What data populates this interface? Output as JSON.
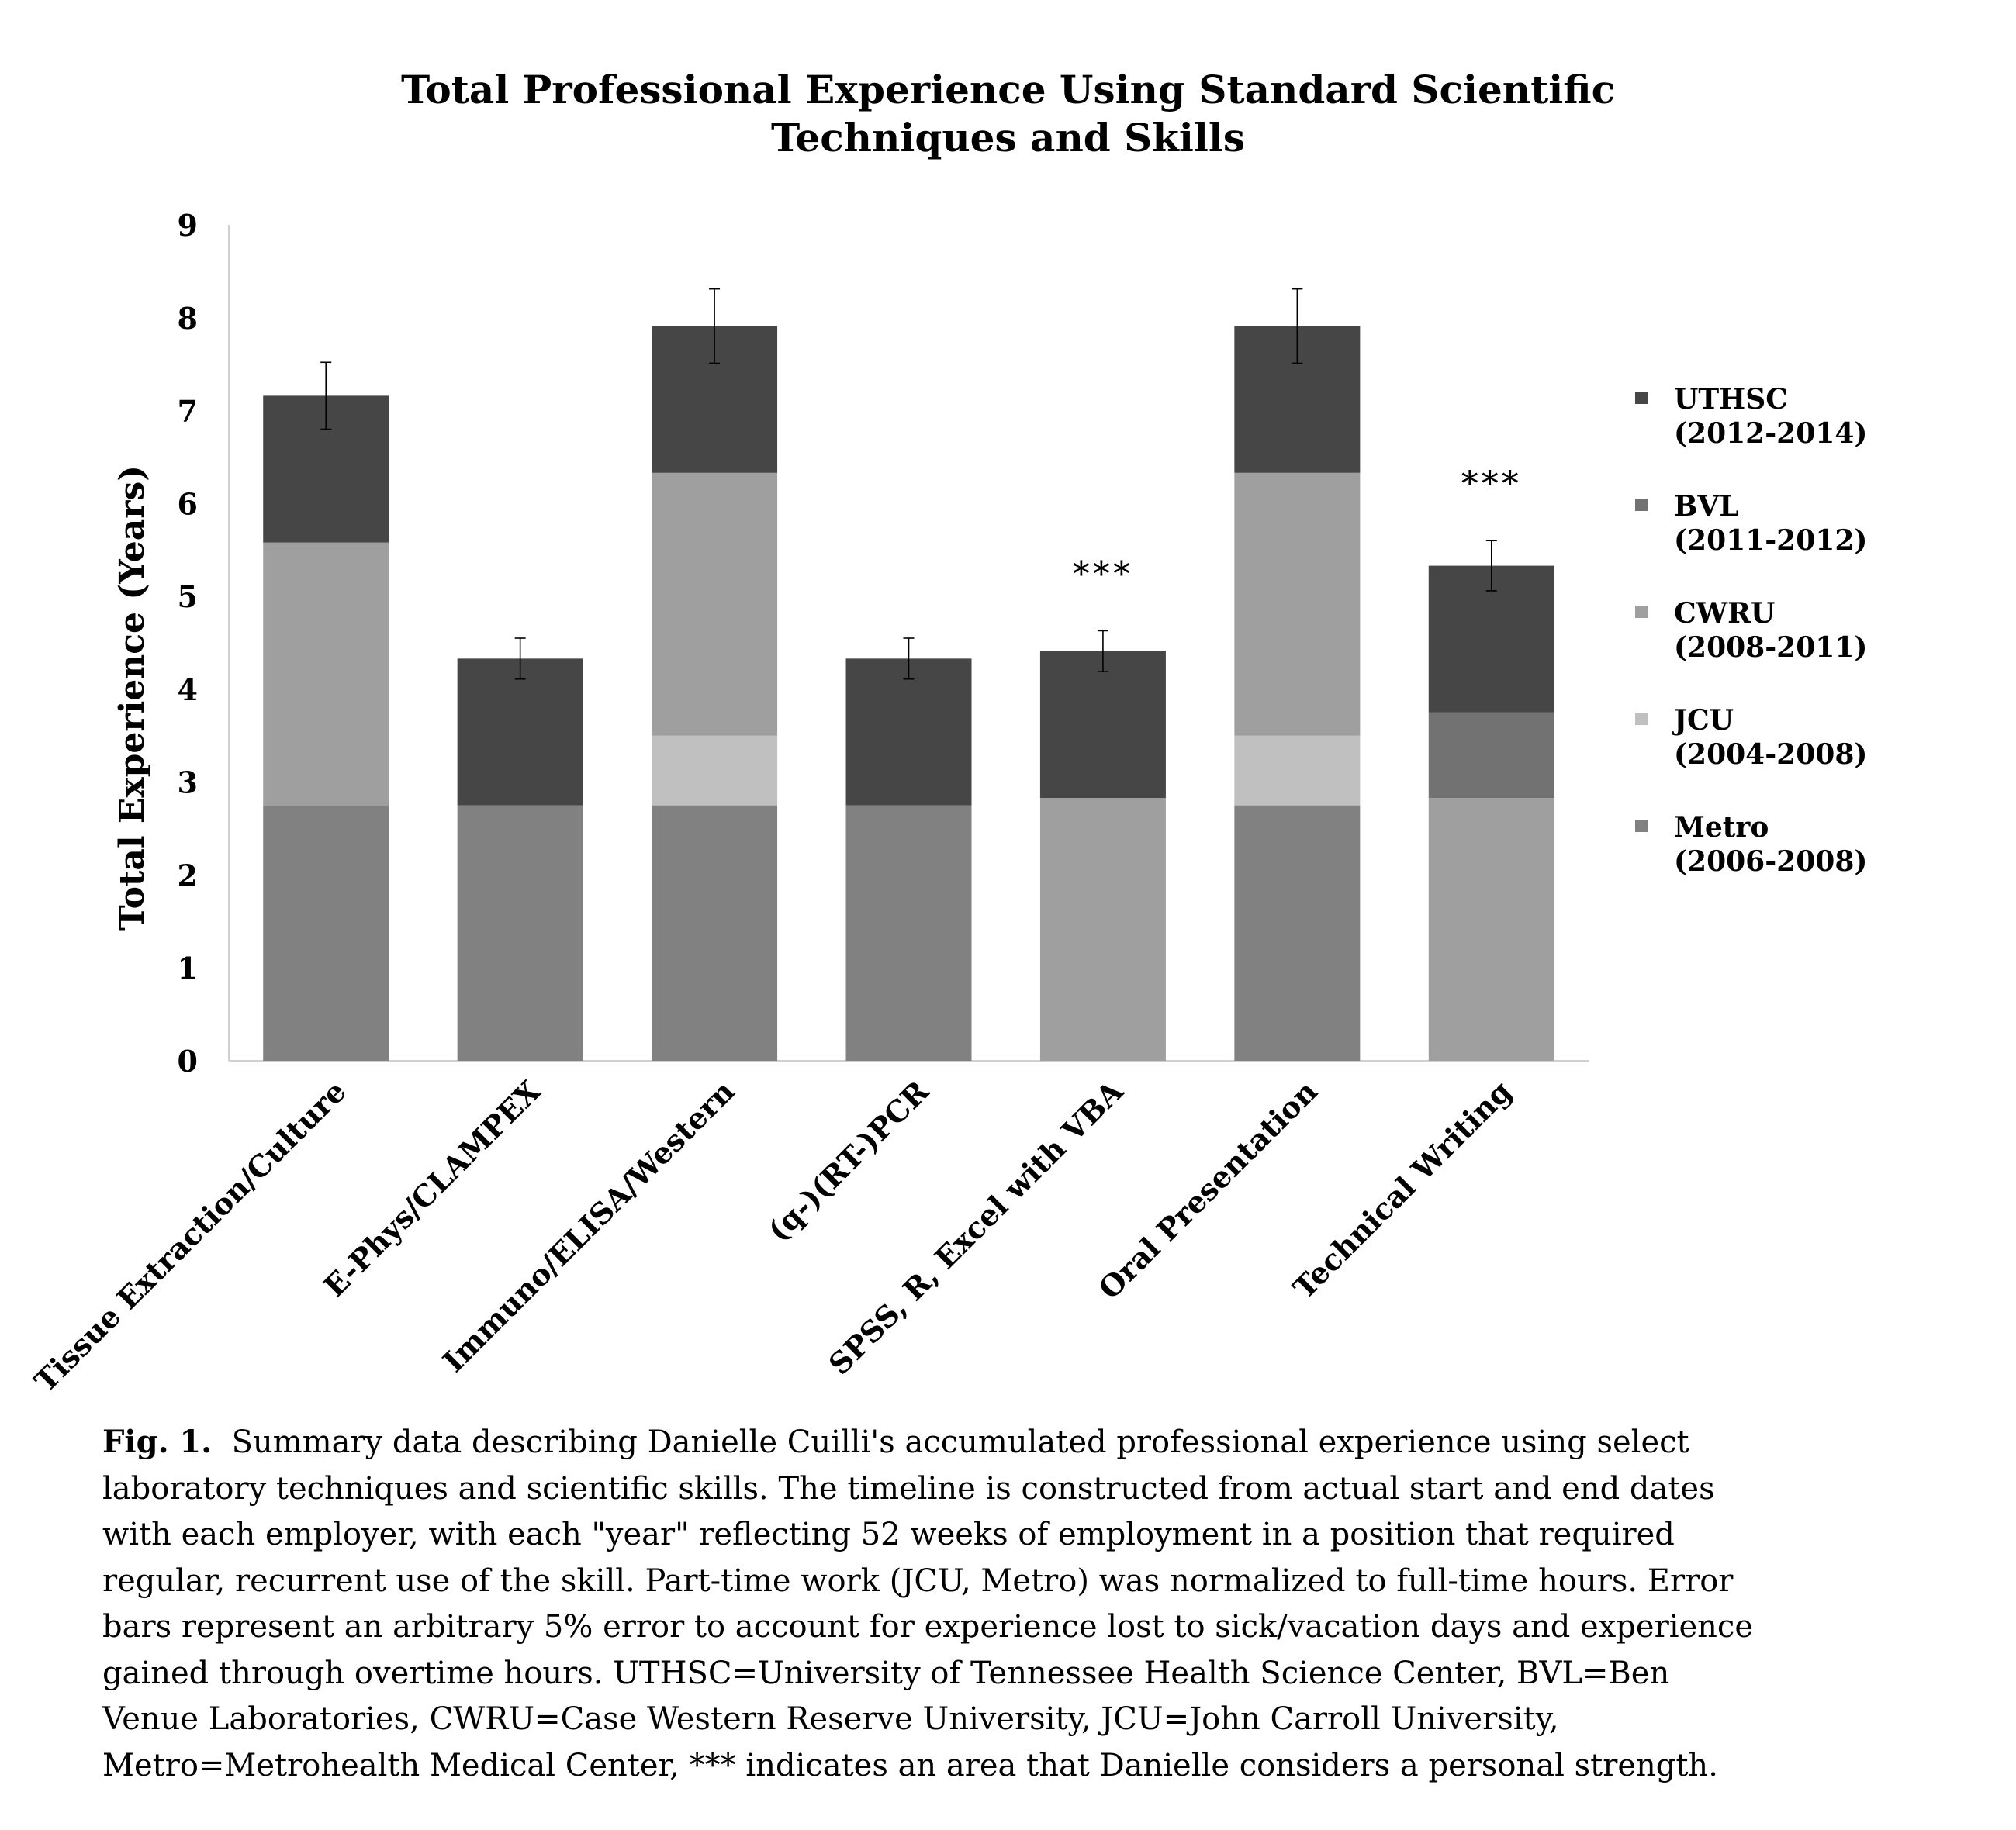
{
  "chart_data": {
    "type": "bar",
    "stacked": true,
    "title_lines": [
      "Total Professional Experience Using Standard Scientific",
      "Techniques and Skills"
    ],
    "ylabel": "Total Experience (Years)",
    "xlabel": "",
    "ylim": [
      0,
      9
    ],
    "yticks": [
      "0",
      "1",
      "2",
      "3",
      "4",
      "5",
      "6",
      "7",
      "8",
      "9"
    ],
    "grid": false,
    "legend_position": "right",
    "categories": [
      "Tissue Extraction/Culture",
      "E-Phys/CLAMPEX",
      "Immuno/ELISA/Western",
      "(q-)(RT-)PCR",
      "SPSS, R, Excel with VBA",
      "Oral Presentation",
      "Technical Writing"
    ],
    "series": [
      {
        "name": "Metro",
        "years": "(2006-2008)",
        "color": "#818181",
        "values": [
          2.75,
          2.75,
          2.75,
          2.75,
          0,
          2.75,
          0
        ]
      },
      {
        "name": "JCU",
        "years": "(2004-2008)",
        "color": "#c0c0c0",
        "values": [
          0,
          0,
          0.75,
          0,
          0,
          0.75,
          0
        ]
      },
      {
        "name": "CWRU",
        "years": "(2008-2011)",
        "color": "#9f9f9f",
        "values": [
          2.83,
          0,
          2.83,
          0,
          2.83,
          2.83,
          2.83
        ]
      },
      {
        "name": "BVL",
        "years": "(2011-2012)",
        "color": "#727272",
        "values": [
          0,
          0,
          0,
          0,
          0,
          0,
          0.92
        ]
      },
      {
        "name": "UTHSC",
        "years": "(2012-2014)",
        "color": "#464646",
        "values": [
          1.58,
          1.58,
          1.58,
          1.58,
          1.58,
          1.58,
          1.58
        ]
      }
    ],
    "totals": [
      7.16,
      4.33,
      7.91,
      4.33,
      4.41,
      7.91,
      5.33
    ],
    "error": [
      0.36,
      0.22,
      0.4,
      0.22,
      0.22,
      0.4,
      0.27
    ],
    "annotations": [
      "",
      "",
      "",
      "",
      "***",
      "",
      "***"
    ]
  },
  "caption": {
    "label": "Fig. 1.",
    "lines": [
      "Summary data describing Danielle Cuilli's accumulated professional experience using select",
      "laboratory techniques and scientific skills. The timeline is constructed from actual start and end dates",
      "with each employer, with each \"year\" reflecting 52 weeks of employment in a position that required",
      "regular, recurrent use of  the skill. Part-time work (JCU, Metro) was normalized to full-time hours.  Error",
      "bars represent an arbitrary 5% error to account for experience lost to sick/vacation days and experience",
      "gained through overtime hours.  UTHSC=University of Tennessee Health Science Center, BVL=Ben",
      "Venue Laboratories, CWRU=Case Western Reserve University, JCU=John Carroll University,",
      "Metro=Metrohealth Medical Center, *** indicates an area that Danielle considers a personal strength."
    ]
  }
}
